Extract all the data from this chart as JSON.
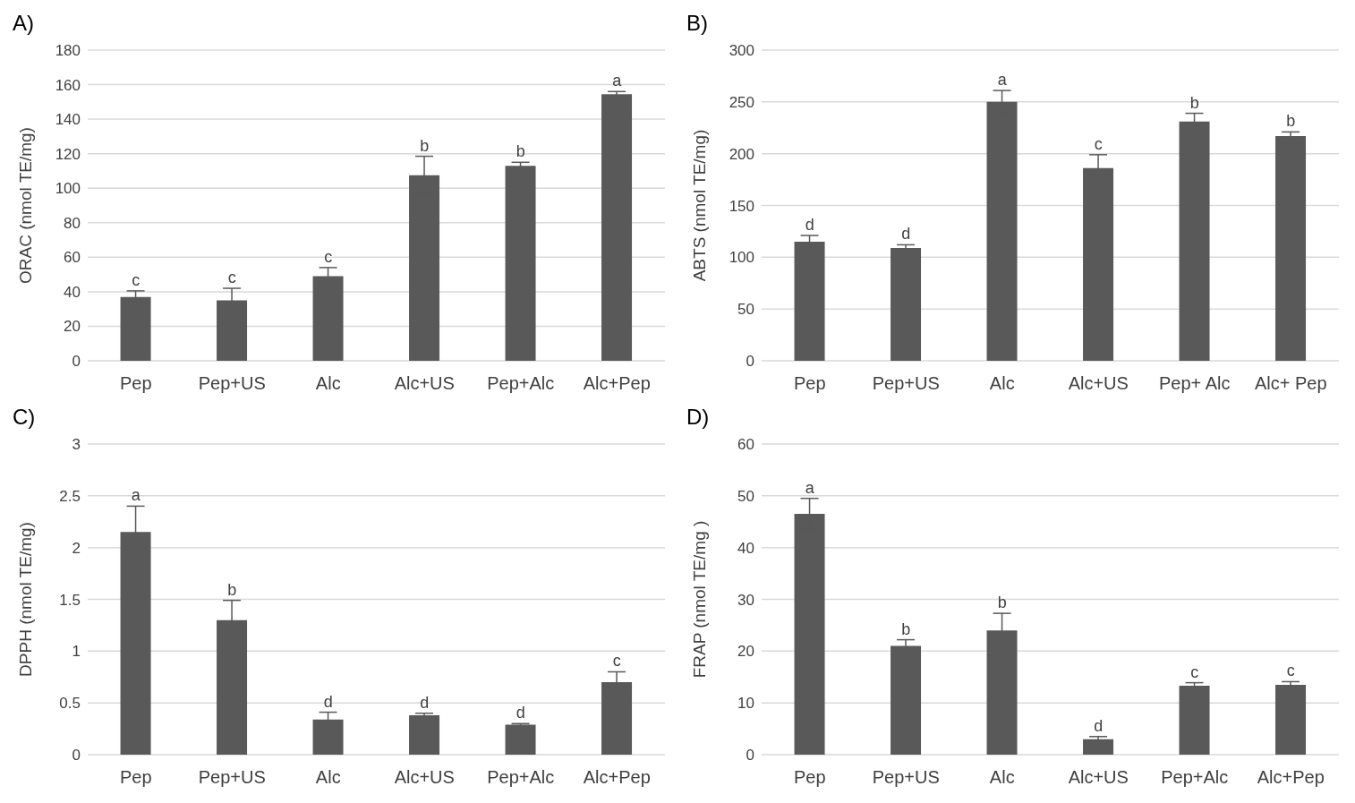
{
  "chart_data": [
    {
      "type": "bar",
      "title": "A)",
      "ylabel": "ORAC  (nmol TE/mg)",
      "categories": [
        "Pep",
        "Pep+US",
        "Alc",
        "Alc+US",
        "Pep+Alc",
        "Alc+Pep"
      ],
      "values": [
        37,
        35,
        49,
        107.5,
        113,
        154.5
      ],
      "errors": [
        3.5,
        7,
        5,
        11,
        2,
        1.5
      ],
      "color": "#595959",
      "ylim": [
        0,
        180
      ],
      "yticks": [
        0,
        20,
        40,
        60,
        80,
        100,
        120,
        140,
        160,
        180
      ],
      "grid": "y",
      "annotations": [
        {
          "text": "c",
          "x": "Pep",
          "y": 40.5
        },
        {
          "text": "c",
          "x": "Pep+US",
          "y": 42
        },
        {
          "text": "c",
          "x": "Alc",
          "y": 54
        },
        {
          "text": "b",
          "x": "Alc+US",
          "y": 118.5
        },
        {
          "text": "b",
          "x": "Pep+Alc",
          "y": 115
        },
        {
          "text": "a",
          "x": "Alc+Pep",
          "y": 156
        }
      ]
    },
    {
      "type": "bar",
      "title": "B)",
      "ylabel": "ABTS (nmol TE/mg)",
      "categories": [
        "Pep",
        "Pep+US",
        "Alc",
        "Alc+US",
        "Pep+ Alc",
        "Alc+ Pep"
      ],
      "values": [
        115,
        109,
        250,
        186,
        231,
        217
      ],
      "errors": [
        6,
        3,
        11,
        13,
        8,
        4
      ],
      "color": "#595959",
      "ylim": [
        0,
        300
      ],
      "yticks": [
        0,
        50,
        100,
        150,
        200,
        250,
        300
      ],
      "grid": "y",
      "annotations": [
        {
          "text": "d",
          "x": "Pep",
          "y": 121
        },
        {
          "text": "d",
          "x": "Pep+US",
          "y": 112
        },
        {
          "text": "a",
          "x": "Alc",
          "y": 261
        },
        {
          "text": "c",
          "x": "Alc+US",
          "y": 199
        },
        {
          "text": "b",
          "x": "Pep+ Alc",
          "y": 239
        },
        {
          "text": "b",
          "x": "Alc+ Pep",
          "y": 221
        }
      ]
    },
    {
      "type": "bar",
      "title": "C)",
      "ylabel": "DPPH (nmol TE/mg)",
      "categories": [
        "Pep",
        "Pep+US",
        "Alc",
        "Alc+US",
        "Pep+Alc",
        "Alc+Pep"
      ],
      "values": [
        2.15,
        1.3,
        0.34,
        0.38,
        0.29,
        0.7
      ],
      "errors": [
        0.25,
        0.19,
        0.07,
        0.02,
        0.01,
        0.1
      ],
      "color": "#595959",
      "ylim": [
        0,
        3
      ],
      "yticks": [
        0,
        0.5,
        1,
        1.5,
        2,
        2.5,
        3
      ],
      "grid": "y",
      "annotations": [
        {
          "text": "a",
          "x": "Pep",
          "y": 2.4
        },
        {
          "text": "b",
          "x": "Pep+US",
          "y": 1.49
        },
        {
          "text": "d",
          "x": "Alc",
          "y": 0.41
        },
        {
          "text": "d",
          "x": "Alc+US",
          "y": 0.4
        },
        {
          "text": "d",
          "x": "Pep+Alc",
          "y": 0.3
        },
        {
          "text": "c",
          "x": "Alc+Pep",
          "y": 0.8
        }
      ]
    },
    {
      "type": "bar",
      "title": "D)",
      "ylabel": "FRAP (nmol TE/mg )",
      "categories": [
        "Pep",
        "Pep+US",
        "Alc",
        "Alc+US",
        "Pep+Alc",
        "Alc+Pep"
      ],
      "values": [
        46.5,
        21,
        24,
        3,
        13.3,
        13.5
      ],
      "errors": [
        3,
        1.2,
        3.3,
        0.5,
        0.6,
        0.6
      ],
      "color": "#595959",
      "ylim": [
        0,
        60
      ],
      "yticks": [
        0,
        10,
        20,
        30,
        40,
        50,
        60
      ],
      "grid": "y",
      "annotations": [
        {
          "text": "a",
          "x": "Pep",
          "y": 49.5
        },
        {
          "text": "b",
          "x": "Pep+US",
          "y": 22.2
        },
        {
          "text": "b",
          "x": "Alc",
          "y": 27.3
        },
        {
          "text": "d",
          "x": "Alc+US",
          "y": 3.5
        },
        {
          "text": "c",
          "x": "Pep+Alc",
          "y": 13.9
        },
        {
          "text": "c",
          "x": "Alc+Pep",
          "y": 14.1
        }
      ]
    }
  ]
}
